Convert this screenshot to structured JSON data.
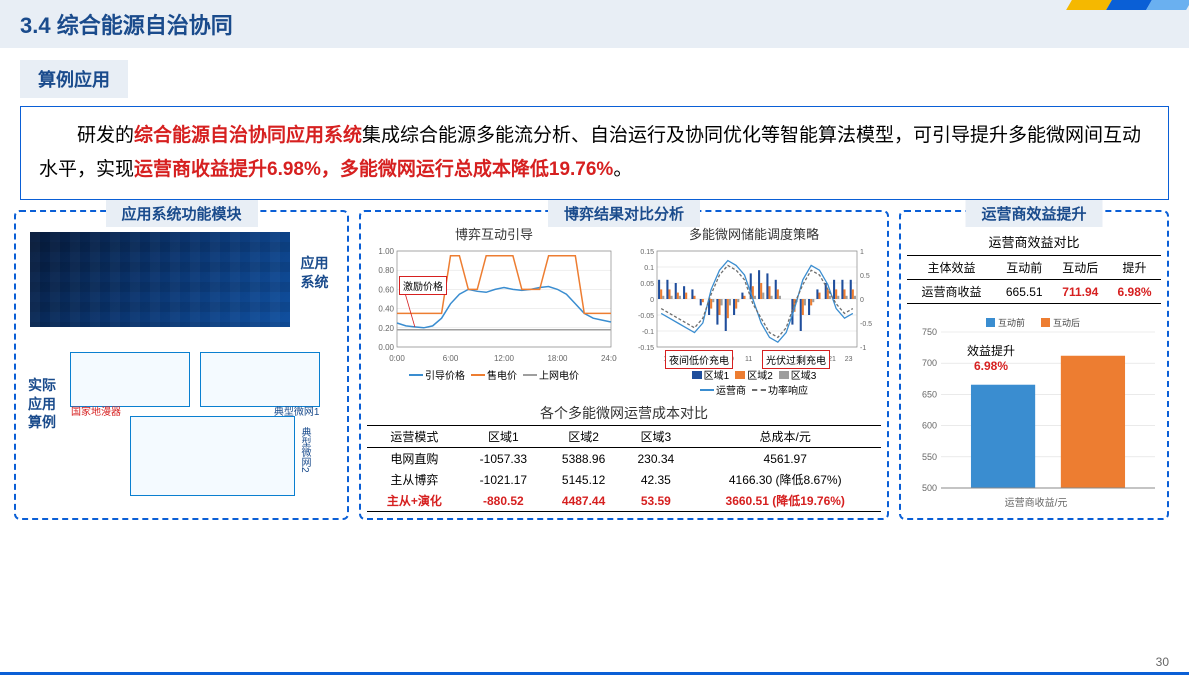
{
  "header": {
    "section_num": "3.4",
    "title": "综合能源自治协同"
  },
  "subheader": "算例应用",
  "intro": {
    "t1": "研发的",
    "em1": "综合能源自治协同应用系统",
    "t2": "集成综合能源多能流分析、自治运行及协同优化等智能算法模型，可引导提升多能微网间互动水平，实现",
    "em2": "运营商收益提升6.98%，多能微网运行总成本降低19.76%",
    "t3": "。"
  },
  "panel1": {
    "title": "应用系统功能模块",
    "label_sys": "应用系统",
    "label_case": "实际应用算例",
    "sketch1_label": "国家地漫器",
    "sketch2_label": "典型微网1",
    "sketch3_label": "典型微网2"
  },
  "panel2": {
    "title": "博弈结果对比分析",
    "chart1": {
      "title": "博弈互动引导",
      "callout": "激励价格",
      "ylim": [
        0,
        1.0
      ],
      "yticks": [
        0.0,
        0.2,
        0.4,
        0.6,
        0.8,
        1.0
      ],
      "xticks": [
        "0:00",
        "6:00",
        "12:00",
        "18:00",
        "24:00"
      ],
      "series": {
        "guide": {
          "color": "#3a8dd0",
          "label": "引导价格",
          "y": [
            0.25,
            0.22,
            0.21,
            0.2,
            0.22,
            0.3,
            0.45,
            0.55,
            0.6,
            0.58,
            0.57,
            0.6,
            0.62,
            0.6,
            0.59,
            0.6,
            0.62,
            0.63,
            0.6,
            0.55,
            0.45,
            0.35,
            0.3,
            0.28,
            0.26
          ]
        },
        "sale": {
          "color": "#ed7d31",
          "label": "售电价",
          "y": [
            0.35,
            0.35,
            0.35,
            0.35,
            0.35,
            0.35,
            0.95,
            0.95,
            0.6,
            0.6,
            0.95,
            0.95,
            0.95,
            0.95,
            0.6,
            0.6,
            0.6,
            0.95,
            0.95,
            0.95,
            0.95,
            0.35,
            0.35,
            0.35,
            0.35
          ]
        },
        "feed": {
          "color": "#9e9e9e",
          "label": "上网电价",
          "y": [
            0.18,
            0.18,
            0.18,
            0.18,
            0.18,
            0.18,
            0.18,
            0.18,
            0.18,
            0.18,
            0.18,
            0.18,
            0.18,
            0.18,
            0.18,
            0.18,
            0.18,
            0.18,
            0.18,
            0.18,
            0.18,
            0.18,
            0.18,
            0.18,
            0.18
          ]
        }
      }
    },
    "chart2": {
      "title": "多能微网储能调度策略",
      "callout1": "夜间低价充电",
      "callout2": "光伏过剩充电",
      "ylim_l": [
        -0.15,
        0.15
      ],
      "yticks_l": [
        -0.15,
        -0.1,
        -0.05,
        0,
        0.05,
        0.1,
        0.15
      ],
      "ylim_r": [
        -1,
        1
      ],
      "yticks_r": [
        -1,
        -0.5,
        0,
        0.5,
        1
      ],
      "xticks": [
        "1",
        "3",
        "5",
        "7",
        "9",
        "11",
        "13",
        "15",
        "17",
        "19",
        "21",
        "23"
      ],
      "bars": {
        "z1": {
          "color": "#1f4e9c",
          "label": "区域1",
          "y": [
            0.06,
            0.06,
            0.05,
            0.04,
            0.03,
            -0.02,
            -0.05,
            -0.08,
            -0.1,
            -0.05,
            0.02,
            0.08,
            0.09,
            0.08,
            0.06,
            0.0,
            -0.08,
            -0.1,
            -0.05,
            0.03,
            0.05,
            0.06,
            0.06,
            0.06
          ]
        },
        "z2": {
          "color": "#ed7d31",
          "label": "区域2",
          "y": [
            0.03,
            0.03,
            0.02,
            0.02,
            0.01,
            -0.01,
            -0.03,
            -0.05,
            -0.06,
            -0.03,
            0.01,
            0.04,
            0.05,
            0.04,
            0.03,
            0.0,
            -0.04,
            -0.05,
            -0.02,
            0.02,
            0.03,
            0.03,
            0.03,
            0.03
          ]
        },
        "z3": {
          "color": "#9e9e9e",
          "label": "区域3",
          "y": [
            0.01,
            0.01,
            0.01,
            0.0,
            0.0,
            0.0,
            -0.01,
            -0.02,
            -0.02,
            -0.01,
            0.0,
            0.01,
            0.02,
            0.01,
            0.01,
            0.0,
            -0.01,
            -0.02,
            -0.01,
            0.0,
            0.01,
            0.01,
            0.01,
            0.01
          ]
        }
      },
      "lines": {
        "op": {
          "color": "#3a8dd0",
          "label": "运营商",
          "dash": false,
          "y": [
            -0.3,
            -0.4,
            -0.5,
            -0.6,
            -0.7,
            -0.5,
            0.2,
            0.6,
            0.8,
            0.7,
            0.5,
            0.0,
            -0.5,
            -0.8,
            -0.9,
            -0.7,
            -0.2,
            0.4,
            0.7,
            0.6,
            0.3,
            -0.2,
            -0.4,
            -0.3
          ]
        },
        "pr": {
          "color": "#6e6e6e",
          "label": "功率响应",
          "dash": true,
          "y": [
            -0.2,
            -0.3,
            -0.4,
            -0.5,
            -0.6,
            -0.4,
            0.1,
            0.5,
            0.7,
            0.6,
            0.4,
            -0.1,
            -0.4,
            -0.7,
            -0.8,
            -0.6,
            -0.1,
            0.3,
            0.6,
            0.5,
            0.2,
            -0.1,
            -0.3,
            -0.2
          ]
        }
      }
    },
    "cost_table": {
      "title": "各个多能微网运营成本对比",
      "columns": [
        "运营模式",
        "区域1",
        "区域2",
        "区域3",
        "总成本/元"
      ],
      "rows": [
        {
          "cells": [
            "电网直购",
            "-1057.33",
            "5388.96",
            "230.34",
            "4561.97"
          ],
          "red": false
        },
        {
          "cells": [
            "主从博弈",
            "-1021.17",
            "5145.12",
            "42.35",
            "4166.30 (降低8.67%)"
          ],
          "red": false
        },
        {
          "cells": [
            "主从+演化",
            "-880.52",
            "4487.44",
            "53.59",
            "3660.51 (降低19.76%)"
          ],
          "red": true
        }
      ]
    }
  },
  "panel3": {
    "title": "运营商效益提升",
    "eff_title": "运营商效益对比",
    "columns": [
      "主体效益",
      "互动前",
      "互动后",
      "提升"
    ],
    "row": {
      "label": "运营商收益",
      "before": "665.51",
      "after": "711.94",
      "gain": "6.98%"
    },
    "bar_chart": {
      "ylim": [
        500,
        750
      ],
      "yticks": [
        500,
        550,
        600,
        650,
        700,
        750
      ],
      "legend": [
        {
          "label": "互动前",
          "color": "#3a8dd0"
        },
        {
          "label": "互动后",
          "color": "#ed7d31"
        }
      ],
      "bars": [
        {
          "value": 665.51,
          "color": "#3a8dd0"
        },
        {
          "value": 711.94,
          "color": "#ed7d31"
        }
      ],
      "xlabel": "运营商收益/元",
      "note1": "效益提升",
      "note2": "6.98%"
    }
  },
  "pagenum": "30"
}
